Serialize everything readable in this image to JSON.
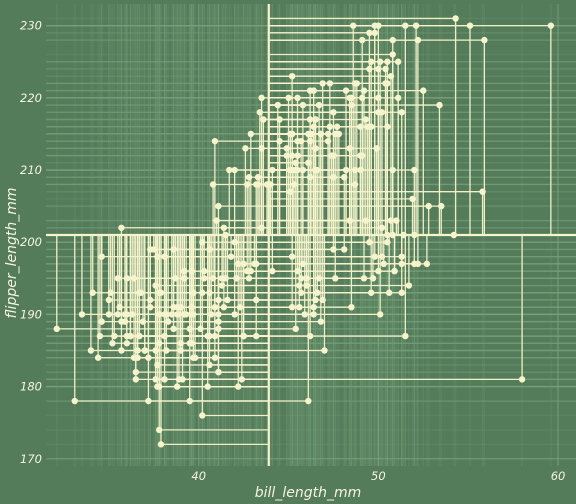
{
  "chart_data": {
    "type": "scatter",
    "title": "",
    "xlabel": "bill_length_mm",
    "ylabel": "flipper_length_mm",
    "xlim": [
      31.5,
      61.0
    ],
    "ylim": [
      169.0,
      233.0
    ],
    "x_ticks": [
      40,
      50,
      60
    ],
    "y_ticks": [
      170,
      180,
      190,
      200,
      210,
      220,
      230
    ],
    "center": [
      43.9,
      201
    ],
    "grid": true,
    "legend": "none",
    "colors": {
      "background": "#557c5a",
      "points": "#f6f4cc",
      "gridlines": "#78a07c",
      "text": "#f4f6dc"
    },
    "points": [
      [
        39.1,
        181
      ],
      [
        39.5,
        186
      ],
      [
        40.3,
        195
      ],
      [
        36.7,
        193
      ],
      [
        39.3,
        190
      ],
      [
        38.9,
        181
      ],
      [
        39.2,
        195
      ],
      [
        34.1,
        193
      ],
      [
        42.0,
        190
      ],
      [
        37.8,
        186
      ],
      [
        37.8,
        180
      ],
      [
        41.1,
        182
      ],
      [
        38.6,
        191
      ],
      [
        34.6,
        198
      ],
      [
        36.6,
        185
      ],
      [
        38.7,
        195
      ],
      [
        42.5,
        197
      ],
      [
        34.4,
        184
      ],
      [
        46.0,
        194
      ],
      [
        37.8,
        174
      ],
      [
        37.7,
        180
      ],
      [
        35.9,
        189
      ],
      [
        38.2,
        185
      ],
      [
        38.8,
        180
      ],
      [
        35.3,
        187
      ],
      [
        40.6,
        183
      ],
      [
        40.5,
        187
      ],
      [
        37.9,
        172
      ],
      [
        40.5,
        180
      ],
      [
        39.5,
        178
      ],
      [
        37.2,
        178
      ],
      [
        39.5,
        188
      ],
      [
        40.9,
        184
      ],
      [
        36.4,
        195
      ],
      [
        39.2,
        196
      ],
      [
        38.8,
        190
      ],
      [
        42.2,
        180
      ],
      [
        37.6,
        181
      ],
      [
        39.8,
        184
      ],
      [
        36.5,
        182
      ],
      [
        40.8,
        195
      ],
      [
        36.0,
        186
      ],
      [
        44.1,
        196
      ],
      [
        37.0,
        185
      ],
      [
        39.6,
        190
      ],
      [
        41.1,
        182
      ],
      [
        36.0,
        190
      ],
      [
        42.3,
        191
      ],
      [
        39.6,
        186
      ],
      [
        40.1,
        188
      ],
      [
        35.0,
        190
      ],
      [
        42.0,
        200
      ],
      [
        34.5,
        187
      ],
      [
        41.4,
        191
      ],
      [
        39.0,
        186
      ],
      [
        40.6,
        193
      ],
      [
        36.5,
        181
      ],
      [
        37.6,
        194
      ],
      [
        35.7,
        185
      ],
      [
        41.3,
        195
      ],
      [
        37.6,
        185
      ],
      [
        41.1,
        192
      ],
      [
        36.4,
        184
      ],
      [
        41.6,
        192
      ],
      [
        35.5,
        195
      ],
      [
        41.1,
        188
      ],
      [
        35.9,
        190
      ],
      [
        41.8,
        198
      ],
      [
        33.5,
        190
      ],
      [
        39.7,
        190
      ],
      [
        39.6,
        196
      ],
      [
        45.8,
        197
      ],
      [
        35.5,
        190
      ],
      [
        42.8,
        195
      ],
      [
        40.9,
        191
      ],
      [
        37.2,
        184
      ],
      [
        36.2,
        187
      ],
      [
        42.1,
        195
      ],
      [
        34.6,
        189
      ],
      [
        42.9,
        196
      ],
      [
        36.7,
        187
      ],
      [
        35.1,
        193
      ],
      [
        37.3,
        191
      ],
      [
        41.3,
        194
      ],
      [
        36.3,
        190
      ],
      [
        36.9,
        189
      ],
      [
        38.3,
        189
      ],
      [
        38.9,
        190
      ],
      [
        35.7,
        202
      ],
      [
        41.1,
        205
      ],
      [
        34.0,
        185
      ],
      [
        39.6,
        186
      ],
      [
        36.2,
        187
      ],
      [
        40.8,
        208
      ],
      [
        38.1,
        190
      ],
      [
        40.3,
        196
      ],
      [
        33.1,
        178
      ],
      [
        43.2,
        192
      ],
      [
        35.0,
        192
      ],
      [
        41.0,
        203
      ],
      [
        37.7,
        183
      ],
      [
        37.8,
        190
      ],
      [
        37.9,
        193
      ],
      [
        39.7,
        184
      ],
      [
        38.6,
        199
      ],
      [
        38.2,
        190
      ],
      [
        38.1,
        181
      ],
      [
        43.2,
        197
      ],
      [
        38.1,
        198
      ],
      [
        45.6,
        191
      ],
      [
        39.7,
        193
      ],
      [
        42.2,
        197
      ],
      [
        39.6,
        191
      ],
      [
        42.7,
        196
      ],
      [
        38.6,
        188
      ],
      [
        37.3,
        199
      ],
      [
        35.7,
        189
      ],
      [
        41.1,
        189
      ],
      [
        36.2,
        187
      ],
      [
        37.7,
        198
      ],
      [
        40.2,
        176
      ],
      [
        41.4,
        202
      ],
      [
        35.2,
        186
      ],
      [
        40.6,
        199
      ],
      [
        38.8,
        191
      ],
      [
        41.5,
        195
      ],
      [
        39.0,
        191
      ],
      [
        44.1,
        210
      ],
      [
        38.5,
        190
      ],
      [
        43.1,
        197
      ],
      [
        36.8,
        193
      ],
      [
        37.5,
        199
      ],
      [
        38.1,
        187
      ],
      [
        41.1,
        190
      ],
      [
        35.6,
        191
      ],
      [
        40.2,
        200
      ],
      [
        37.0,
        185
      ],
      [
        39.7,
        193
      ],
      [
        40.2,
        193
      ],
      [
        40.6,
        187
      ],
      [
        32.1,
        188
      ],
      [
        40.7,
        190
      ],
      [
        37.3,
        192
      ],
      [
        39.0,
        185
      ],
      [
        39.2,
        190
      ],
      [
        36.6,
        184
      ],
      [
        36.0,
        195
      ],
      [
        37.8,
        193
      ],
      [
        36.0,
        187
      ],
      [
        41.5,
        201
      ],
      [
        46.1,
        211
      ],
      [
        50.0,
        230
      ],
      [
        48.7,
        210
      ],
      [
        50.0,
        218
      ],
      [
        47.6,
        215
      ],
      [
        46.5,
        210
      ],
      [
        45.4,
        211
      ],
      [
        46.7,
        219
      ],
      [
        43.3,
        209
      ],
      [
        46.8,
        215
      ],
      [
        40.9,
        214
      ],
      [
        49.0,
        216
      ],
      [
        45.5,
        214
      ],
      [
        48.4,
        213
      ],
      [
        45.8,
        210
      ],
      [
        49.3,
        217
      ],
      [
        42.0,
        210
      ],
      [
        49.2,
        221
      ],
      [
        46.2,
        209
      ],
      [
        48.7,
        222
      ],
      [
        50.2,
        218
      ],
      [
        45.1,
        215
      ],
      [
        46.5,
        213
      ],
      [
        46.3,
        215
      ],
      [
        42.9,
        215
      ],
      [
        46.1,
        215
      ],
      [
        47.8,
        215
      ],
      [
        48.2,
        210
      ],
      [
        50.0,
        220
      ],
      [
        47.3,
        222
      ],
      [
        42.8,
        209
      ],
      [
        45.1,
        207
      ],
      [
        59.6,
        230
      ],
      [
        49.1,
        220
      ],
      [
        48.4,
        220
      ],
      [
        42.6,
        213
      ],
      [
        44.4,
        219
      ],
      [
        44.0,
        208
      ],
      [
        48.7,
        208
      ],
      [
        42.7,
        208
      ],
      [
        49.6,
        225
      ],
      [
        45.3,
        210
      ],
      [
        49.6,
        216
      ],
      [
        50.5,
        222
      ],
      [
        43.6,
        217
      ],
      [
        45.5,
        210
      ],
      [
        50.5,
        225
      ],
      [
        44.9,
        213
      ],
      [
        45.2,
        215
      ],
      [
        46.6,
        210
      ],
      [
        48.5,
        220
      ],
      [
        45.1,
        210
      ],
      [
        50.1,
        225
      ],
      [
        46.5,
        217
      ],
      [
        45.0,
        220
      ],
      [
        43.8,
        208
      ],
      [
        45.5,
        220
      ],
      [
        43.2,
        208
      ],
      [
        50.4,
        224
      ],
      [
        45.3,
        208
      ],
      [
        46.2,
        221
      ],
      [
        45.7,
        214
      ],
      [
        54.3,
        231
      ],
      [
        45.8,
        219
      ],
      [
        49.8,
        230
      ],
      [
        46.2,
        214
      ],
      [
        49.5,
        229
      ],
      [
        43.5,
        220
      ],
      [
        50.7,
        223
      ],
      [
        47.7,
        216
      ],
      [
        46.4,
        221
      ],
      [
        48.2,
        221
      ],
      [
        46.5,
        217
      ],
      [
        46.4,
        216
      ],
      [
        48.6,
        230
      ],
      [
        47.5,
        209
      ],
      [
        51.1,
        220
      ],
      [
        45.2,
        215
      ],
      [
        45.2,
        223
      ],
      [
        49.1,
        212
      ],
      [
        52.5,
        221
      ],
      [
        47.4,
        212
      ],
      [
        50.0,
        224
      ],
      [
        44.9,
        212
      ],
      [
        50.8,
        228
      ],
      [
        43.4,
        218
      ],
      [
        51.3,
        218
      ],
      [
        47.5,
        212
      ],
      [
        52.1,
        230
      ],
      [
        47.5,
        218
      ],
      [
        52.2,
        228
      ],
      [
        45.5,
        212
      ],
      [
        49.5,
        224
      ],
      [
        44.5,
        214
      ],
      [
        50.8,
        226
      ],
      [
        49.4,
        216
      ],
      [
        46.9,
        222
      ],
      [
        48.4,
        203
      ],
      [
        51.1,
        225
      ],
      [
        48.5,
        219
      ],
      [
        55.9,
        228
      ],
      [
        47.2,
        215
      ],
      [
        49.1,
        228
      ],
      [
        47.3,
        216
      ],
      [
        46.8,
        215
      ],
      [
        41.7,
        210
      ],
      [
        53.4,
        219
      ],
      [
        43.3,
        208
      ],
      [
        48.1,
        209
      ],
      [
        50.5,
        216
      ],
      [
        49.8,
        229
      ],
      [
        43.5,
        213
      ],
      [
        51.5,
        230
      ],
      [
        46.2,
        217
      ],
      [
        55.1,
        230
      ],
      [
        44.5,
        217
      ],
      [
        48.8,
        222
      ],
      [
        47.2,
        214
      ],
      [
        46.8,
        215
      ],
      [
        50.4,
        222
      ],
      [
        45.2,
        212
      ],
      [
        49.9,
        213
      ],
      [
        46.5,
        192
      ],
      [
        50.0,
        196
      ],
      [
        51.3,
        193
      ],
      [
        45.4,
        188
      ],
      [
        52.7,
        197
      ],
      [
        45.2,
        198
      ],
      [
        46.1,
        178
      ],
      [
        51.3,
        197
      ],
      [
        46.0,
        195
      ],
      [
        51.3,
        198
      ],
      [
        46.6,
        193
      ],
      [
        51.7,
        194
      ],
      [
        47.0,
        185
      ],
      [
        52.0,
        201
      ],
      [
        45.9,
        190
      ],
      [
        50.5,
        201
      ],
      [
        50.3,
        197
      ],
      [
        58.0,
        181
      ],
      [
        46.4,
        190
      ],
      [
        49.2,
        195
      ],
      [
        42.4,
        181
      ],
      [
        48.5,
        191
      ],
      [
        43.2,
        187
      ],
      [
        50.6,
        193
      ],
      [
        46.7,
        195
      ],
      [
        52.0,
        197
      ],
      [
        50.5,
        200
      ],
      [
        49.5,
        200
      ],
      [
        46.4,
        191
      ],
      [
        52.8,
        205
      ],
      [
        40.9,
        187
      ],
      [
        54.2,
        201
      ],
      [
        42.5,
        187
      ],
      [
        51.0,
        203
      ],
      [
        49.7,
        195
      ],
      [
        47.5,
        199
      ],
      [
        47.6,
        195
      ],
      [
        52.0,
        210
      ],
      [
        46.9,
        192
      ],
      [
        53.5,
        205
      ],
      [
        49.0,
        210
      ],
      [
        46.2,
        187
      ],
      [
        50.9,
        196
      ],
      [
        45.5,
        196
      ],
      [
        50.9,
        196
      ],
      [
        50.8,
        201
      ],
      [
        50.1,
        190
      ],
      [
        49.0,
        212
      ],
      [
        51.5,
        187
      ],
      [
        49.8,
        198
      ],
      [
        48.1,
        199
      ],
      [
        51.4,
        201
      ],
      [
        45.7,
        193
      ],
      [
        50.7,
        203
      ],
      [
        42.5,
        187
      ],
      [
        52.2,
        197
      ],
      [
        45.2,
        191
      ],
      [
        49.3,
        203
      ],
      [
        50.2,
        202
      ],
      [
        45.6,
        194
      ],
      [
        51.9,
        206
      ],
      [
        46.8,
        189
      ],
      [
        45.7,
        195
      ],
      [
        55.8,
        207
      ],
      [
        43.5,
        202
      ],
      [
        49.6,
        193
      ],
      [
        50.8,
        210
      ],
      [
        50.2,
        198
      ]
    ]
  }
}
